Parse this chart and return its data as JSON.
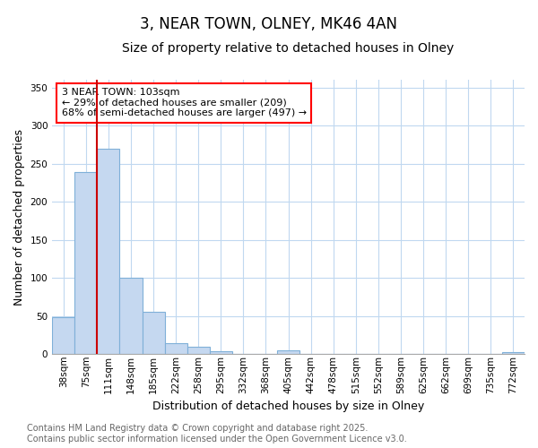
{
  "title": "3, NEAR TOWN, OLNEY, MK46 4AN",
  "subtitle": "Size of property relative to detached houses in Olney",
  "xlabel": "Distribution of detached houses by size in Olney",
  "ylabel": "Number of detached properties",
  "bin_labels": [
    "38sqm",
    "75sqm",
    "111sqm",
    "148sqm",
    "185sqm",
    "222sqm",
    "258sqm",
    "295sqm",
    "332sqm",
    "368sqm",
    "405sqm",
    "442sqm",
    "478sqm",
    "515sqm",
    "552sqm",
    "589sqm",
    "625sqm",
    "662sqm",
    "699sqm",
    "735sqm",
    "772sqm"
  ],
  "bar_values": [
    48,
    239,
    270,
    100,
    55,
    14,
    10,
    4,
    0,
    0,
    5,
    0,
    0,
    0,
    0,
    0,
    0,
    0,
    0,
    0,
    2
  ],
  "bar_color": "#c5d8f0",
  "bar_edge_color": "#7fb0d8",
  "property_line_color": "#cc0000",
  "property_line_bin": 2,
  "annotation_text": "3 NEAR TOWN: 103sqm\n← 29% of detached houses are smaller (209)\n68% of semi-detached houses are larger (497) →",
  "ylim": [
    0,
    360
  ],
  "yticks": [
    0,
    50,
    100,
    150,
    200,
    250,
    300,
    350
  ],
  "footer_line1": "Contains HM Land Registry data © Crown copyright and database right 2025.",
  "footer_line2": "Contains public sector information licensed under the Open Government Licence v3.0.",
  "background_color": "#ffffff",
  "grid_color": "#c0d8f0",
  "title_fontsize": 12,
  "subtitle_fontsize": 10,
  "axis_label_fontsize": 9,
  "tick_fontsize": 7.5,
  "annotation_fontsize": 8,
  "footer_fontsize": 7
}
